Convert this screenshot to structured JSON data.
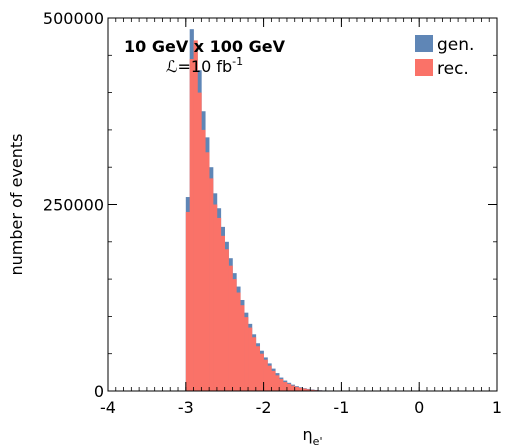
{
  "chart_data": {
    "type": "bar",
    "title": "",
    "annotation": {
      "energies": "10 GeV x 100 GeV",
      "lumi_prefix": "ℒ=10 fb",
      "lumi_exponent": "-1"
    },
    "xlabel": "η",
    "xlabel_subscript": "e'",
    "ylabel": "number of events",
    "xlim": [
      -4,
      1
    ],
    "ylim": [
      0,
      500000
    ],
    "x_ticks": [
      -4,
      -3,
      -2,
      -1,
      0,
      1
    ],
    "x_tick_labels": [
      "-4",
      "-3",
      "-2",
      "-1",
      "0",
      "1"
    ],
    "y_ticks": [
      0,
      250000,
      500000
    ],
    "y_tick_labels": [
      "0",
      "250000",
      "500000"
    ],
    "grid": false,
    "legend": "top-right",
    "bin_start": -3.0,
    "bin_width": 0.05,
    "series": [
      {
        "name": "gen.",
        "color": "#5f86b6",
        "values": [
          260000,
          485000,
          460000,
          430000,
          375000,
          340000,
          300000,
          265000,
          245000,
          220000,
          200000,
          178000,
          158000,
          140000,
          122000,
          105000,
          90000,
          76000,
          64000,
          54000,
          45000,
          37000,
          30000,
          24000,
          18000,
          14000,
          11000,
          8500,
          6500,
          5000,
          3800,
          2800,
          2000,
          1400,
          1000,
          700,
          450,
          300,
          200,
          120
        ]
      },
      {
        "name": "rec.",
        "color": "#fa7268",
        "values": [
          240000,
          445000,
          470000,
          400000,
          350000,
          320000,
          285000,
          250000,
          232000,
          208000,
          190000,
          168000,
          150000,
          132000,
          115000,
          99000,
          85000,
          72000,
          60000,
          50000,
          42000,
          34000,
          27000,
          21000,
          16000,
          12000,
          9500,
          7200,
          5500,
          4200,
          3200,
          2300,
          1600,
          1100,
          800,
          550,
          350,
          230,
          150,
          90
        ]
      }
    ]
  }
}
